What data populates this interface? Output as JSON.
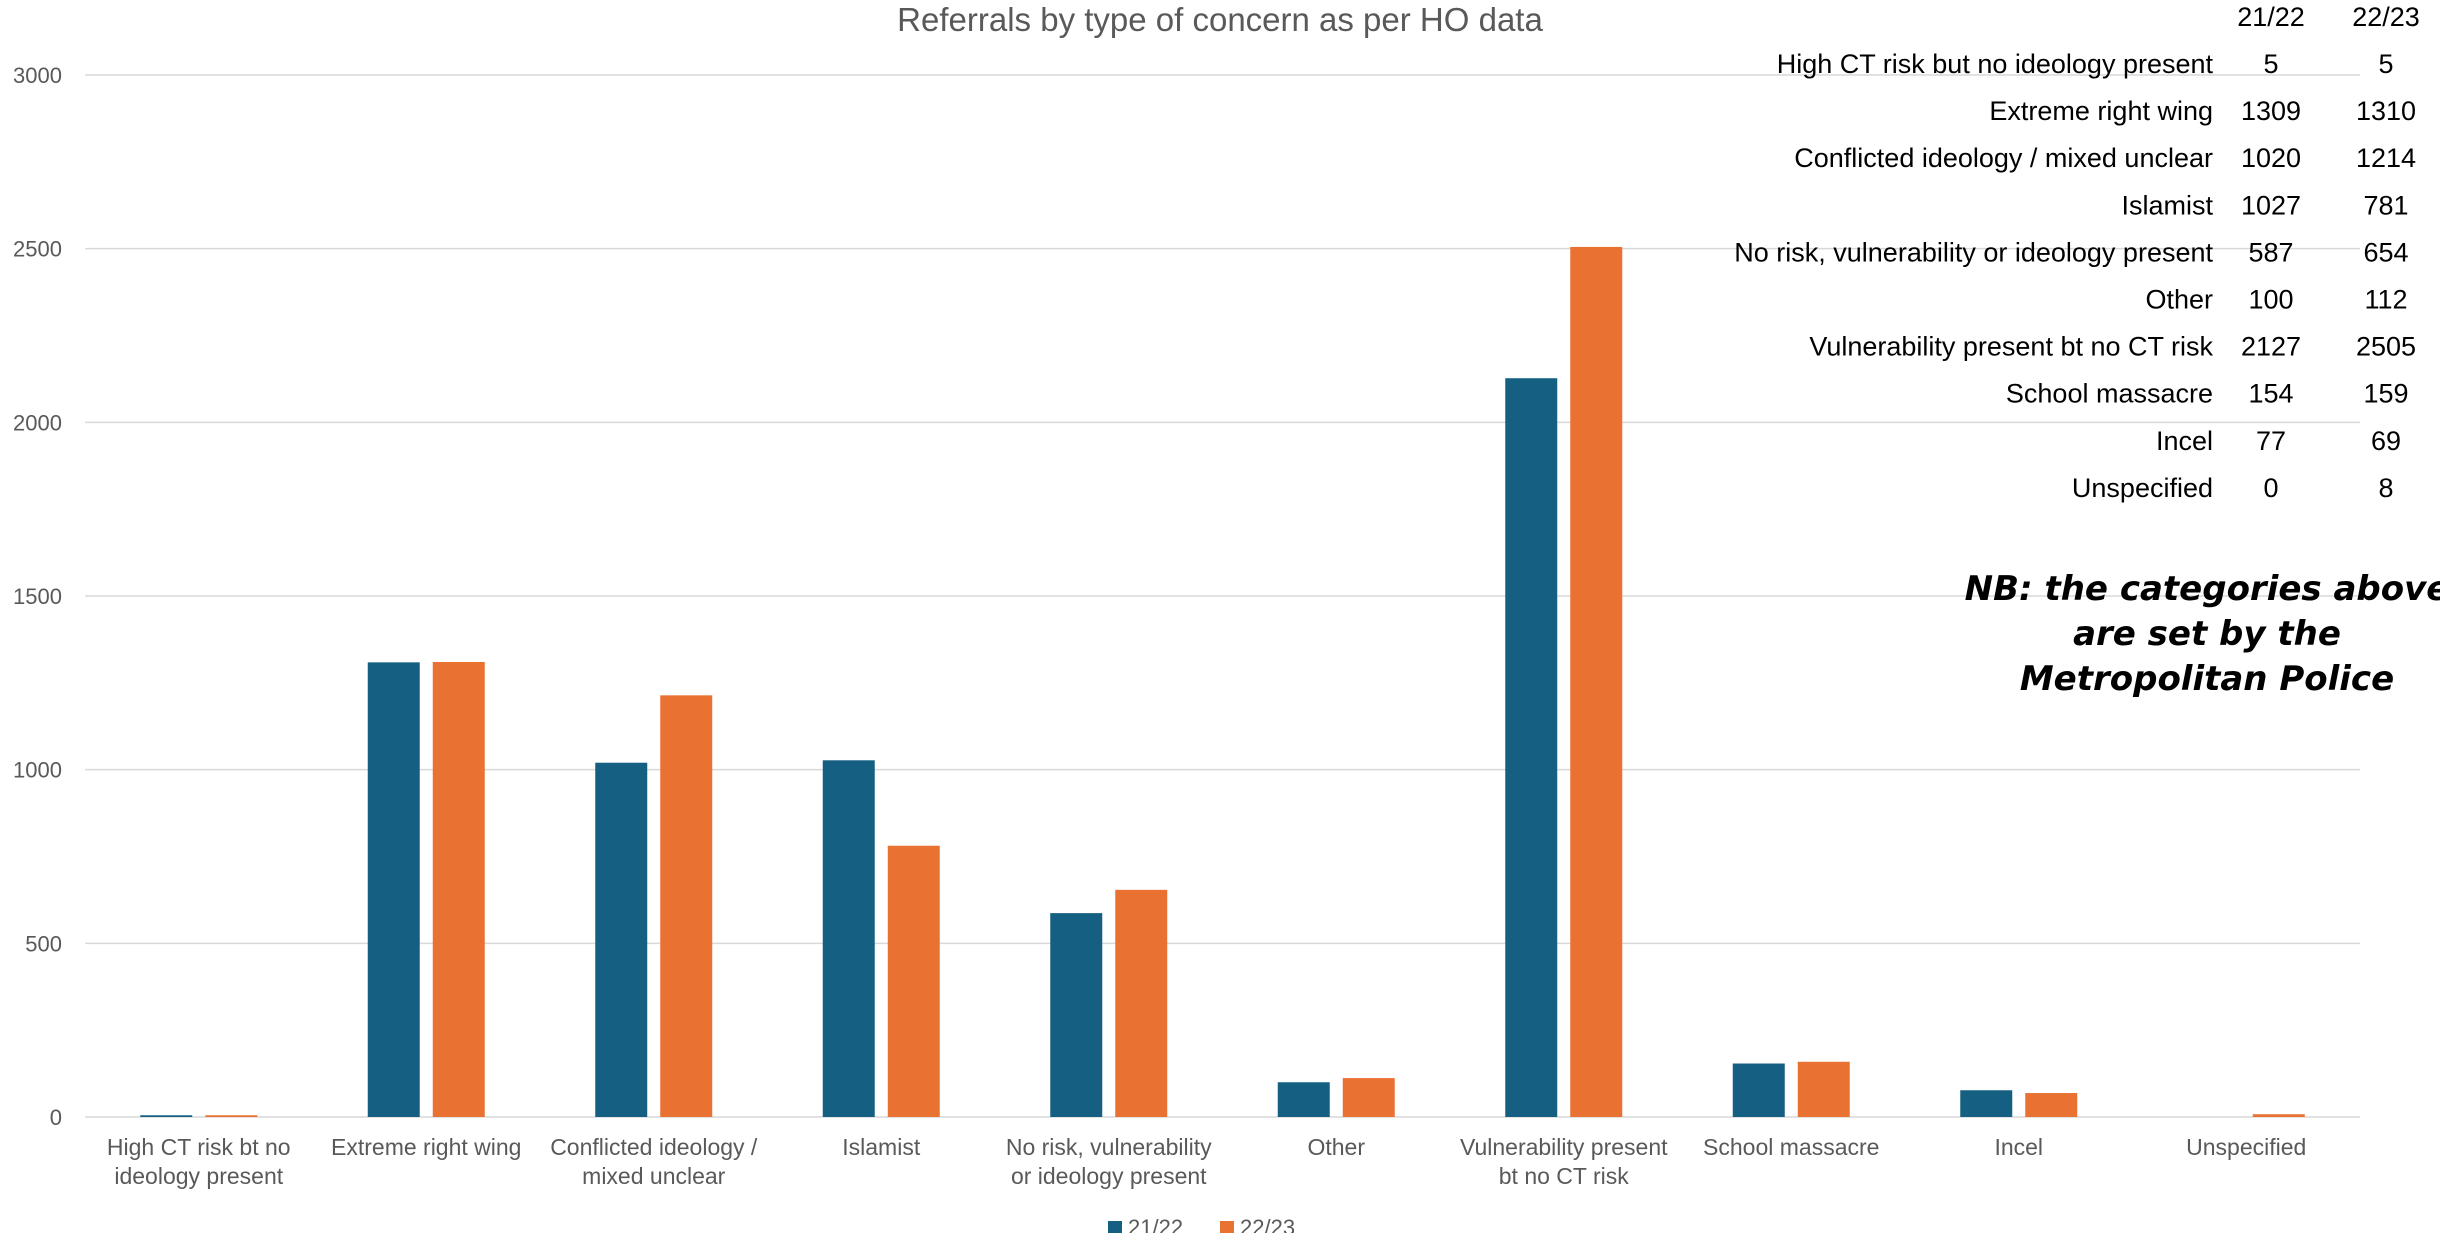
{
  "chart_data": {
    "type": "bar",
    "title": "Referrals by type of concern as per HO data",
    "xlabel": "",
    "ylabel": "",
    "ylim": [
      0,
      3000
    ],
    "yticks": [
      0,
      500,
      1000,
      1500,
      2000,
      2500,
      3000
    ],
    "grid": true,
    "legend_position": "bottom",
    "categories": [
      [
        "High CT risk bt no",
        "ideology present"
      ],
      [
        "Extreme right wing"
      ],
      [
        "Conflicted ideology /",
        "mixed unclear"
      ],
      [
        "Islamist"
      ],
      [
        "No risk, vulnerability",
        "or ideology present"
      ],
      [
        "Other"
      ],
      [
        "Vulnerability present",
        "bt no CT risk"
      ],
      [
        "School massacre"
      ],
      [
        "Incel"
      ],
      [
        "Unspecified"
      ]
    ],
    "series": [
      {
        "name": "21/22",
        "color": "#156082",
        "values": [
          5,
          1309,
          1020,
          1027,
          587,
          100,
          2127,
          154,
          77,
          0
        ]
      },
      {
        "name": "22/23",
        "color": "#E97132",
        "values": [
          5,
          1310,
          1214,
          781,
          654,
          112,
          2505,
          159,
          69,
          8
        ]
      }
    ]
  },
  "data_table": {
    "headers": [
      "21/22",
      "22/23"
    ],
    "rows": [
      {
        "label": "High CT risk but no ideology present",
        "v1": "5",
        "v2": "5"
      },
      {
        "label": "Extreme right wing",
        "v1": "1309",
        "v2": "1310"
      },
      {
        "label": "Conflicted ideology / mixed unclear",
        "v1": "1020",
        "v2": "1214"
      },
      {
        "label": "Islamist",
        "v1": "1027",
        "v2": "781"
      },
      {
        "label": "No risk, vulnerability or ideology present",
        "v1": "587",
        "v2": "654"
      },
      {
        "label": "Other",
        "v1": "100",
        "v2": "112"
      },
      {
        "label": "Vulnerability present bt no CT risk",
        "v1": "2127",
        "v2": "2505"
      },
      {
        "label": "School massacre",
        "v1": "154",
        "v2": "159"
      },
      {
        "label": "Incel",
        "v1": "77",
        "v2": "69"
      },
      {
        "label": "Unspecified",
        "v1": "0",
        "v2": "8"
      }
    ]
  },
  "note": {
    "lines": [
      "NB: the categories above",
      "are set by the",
      "Metropolitan Police"
    ]
  },
  "colors": {
    "grid": "#d9d9d9",
    "text": "#595959"
  }
}
